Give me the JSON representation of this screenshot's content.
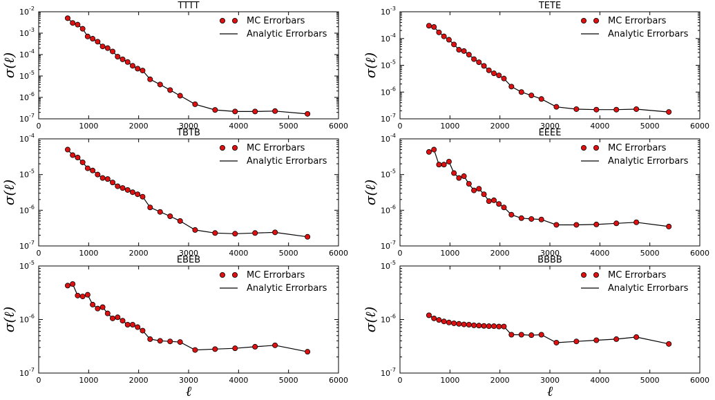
{
  "figure": {
    "legend": {
      "mc_label": "MC Errorbars",
      "analytic_label": "Analytic Errorbars",
      "placement": "top-right"
    },
    "x_axis_label": "ℓ",
    "y_axis_label": "σ(ℓ)",
    "colors": {
      "marker": "#dd1111",
      "line": "#000000"
    }
  },
  "chart_data": [
    {
      "type": "line",
      "title": "TTTT",
      "xlabel": "",
      "ylabel": "σ(ℓ)",
      "xlim": [
        0,
        6000
      ],
      "ylim_exp": [
        -7,
        -2
      ],
      "xticks": [
        0,
        1000,
        2000,
        3000,
        4000,
        5000,
        6000
      ],
      "x": [
        580,
        680,
        780,
        880,
        980,
        1080,
        1180,
        1280,
        1380,
        1480,
        1580,
        1680,
        1780,
        1880,
        1980,
        2080,
        2230,
        2430,
        2630,
        2830,
        3130,
        3530,
        3930,
        4330,
        4730,
        5380
      ],
      "y": [
        0.005,
        0.003,
        0.0025,
        0.0016,
        0.0007,
        0.00055,
        0.0004,
        0.00024,
        0.0002,
        0.00014,
        8e-05,
        6e-05,
        4.5e-05,
        3e-05,
        2.2e-05,
        1.8e-05,
        7e-06,
        4e-06,
        2.2e-06,
        1.2e-06,
        4.8e-07,
        2.6e-07,
        2.2e-07,
        2.2e-07,
        2.3e-07,
        1.7e-07
      ]
    },
    {
      "type": "line",
      "title": "TETE",
      "xlabel": "",
      "ylabel": "σ(ℓ)",
      "xlim": [
        0,
        6000
      ],
      "ylim_exp": [
        -7,
        -3
      ],
      "xticks": [
        0,
        1000,
        2000,
        3000,
        4000,
        5000,
        6000
      ],
      "x": [
        580,
        680,
        780,
        880,
        980,
        1080,
        1180,
        1280,
        1380,
        1480,
        1580,
        1680,
        1780,
        1880,
        1980,
        2080,
        2230,
        2430,
        2630,
        2830,
        3130,
        3530,
        3930,
        4330,
        4730,
        5380
      ],
      "y": [
        0.0003,
        0.00027,
        0.00017,
        0.00012,
        9e-05,
        6e-05,
        3.8e-05,
        3.4e-05,
        2.5e-05,
        1.7e-05,
        1.3e-05,
        9.5e-06,
        6.5e-06,
        5e-06,
        4.2e-06,
        3.2e-06,
        1.6e-06,
        1e-06,
        7.5e-07,
        5.5e-07,
        2.8e-07,
        2.3e-07,
        2.2e-07,
        2.2e-07,
        2.3e-07,
        1.8e-07
      ]
    },
    {
      "type": "line",
      "title": "TBTB",
      "xlabel": "",
      "ylabel": "σ(ℓ)",
      "xlim": [
        0,
        6000
      ],
      "ylim_exp": [
        -7,
        -4
      ],
      "xticks": [
        0,
        1000,
        2000,
        3000,
        4000,
        5000,
        6000
      ],
      "x": [
        580,
        680,
        780,
        880,
        980,
        1080,
        1180,
        1280,
        1380,
        1480,
        1580,
        1680,
        1780,
        1880,
        1980,
        2080,
        2230,
        2430,
        2630,
        2830,
        3130,
        3530,
        3930,
        4330,
        4730,
        5380
      ],
      "y": [
        5e-05,
        3.5e-05,
        3e-05,
        2.2e-05,
        1.5e-05,
        1.3e-05,
        1e-05,
        8e-06,
        7.5e-06,
        6e-06,
        4.7e-06,
        4.2e-06,
        3.7e-06,
        3.2e-06,
        2.8e-06,
        2.4e-06,
        1.2e-06,
        9e-07,
        6.8e-07,
        5e-07,
        2.8e-07,
        2.3e-07,
        2.2e-07,
        2.3e-07,
        2.4e-07,
        1.8e-07
      ]
    },
    {
      "type": "line",
      "title": "EEEE",
      "xlabel": "",
      "ylabel": "σ(ℓ)",
      "xlim": [
        0,
        6000
      ],
      "ylim_exp": [
        -7,
        -4
      ],
      "xticks": [
        0,
        1000,
        2000,
        3000,
        4000,
        5000,
        6000
      ],
      "x": [
        580,
        680,
        780,
        880,
        980,
        1080,
        1180,
        1280,
        1380,
        1480,
        1580,
        1680,
        1780,
        1880,
        1980,
        2080,
        2230,
        2430,
        2630,
        2830,
        3130,
        3530,
        3930,
        4330,
        4730,
        5380
      ],
      "y": [
        4.3e-05,
        5e-05,
        1.9e-05,
        1.9e-05,
        2.3e-05,
        1.1e-05,
        8e-06,
        9e-06,
        5.5e-06,
        3.6e-06,
        4e-06,
        2.8e-06,
        1.8e-06,
        1.9e-06,
        1.5e-06,
        1.2e-06,
        7.5e-07,
        6e-07,
        5.7e-07,
        5.5e-07,
        3.9e-07,
        3.9e-07,
        4e-07,
        4.3e-07,
        4.6e-07,
        3.5e-07
      ]
    },
    {
      "type": "line",
      "title": "EBEB",
      "xlabel": "ℓ",
      "ylabel": "σ(ℓ)",
      "xlim": [
        0,
        6000
      ],
      "ylim_exp": [
        -7,
        -5
      ],
      "xticks": [
        0,
        1000,
        2000,
        3000,
        4000,
        5000,
        6000
      ],
      "x": [
        580,
        680,
        780,
        880,
        980,
        1080,
        1180,
        1280,
        1380,
        1480,
        1580,
        1680,
        1780,
        1880,
        1980,
        2080,
        2230,
        2430,
        2630,
        2830,
        3130,
        3530,
        3930,
        4330,
        4730,
        5380
      ],
      "y": [
        4.3e-06,
        4.6e-06,
        2.8e-06,
        2.7e-06,
        2.9e-06,
        1.9e-06,
        1.6e-06,
        1.7e-06,
        1.3e-06,
        1.05e-06,
        1.1e-06,
        9.5e-07,
        8e-07,
        8e-07,
        7.2e-07,
        6.2e-07,
        4.3e-07,
        4e-07,
        3.9e-07,
        3.8e-07,
        2.7e-07,
        2.8e-07,
        2.9e-07,
        3.1e-07,
        3.3e-07,
        2.5e-07
      ]
    },
    {
      "type": "line",
      "title": "BBBB",
      "xlabel": "ℓ",
      "ylabel": "σ(ℓ)",
      "xlim": [
        0,
        6000
      ],
      "ylim_exp": [
        -7,
        -5
      ],
      "xticks": [
        0,
        1000,
        2000,
        3000,
        4000,
        5000,
        6000
      ],
      "x": [
        580,
        680,
        780,
        880,
        980,
        1080,
        1180,
        1280,
        1380,
        1480,
        1580,
        1680,
        1780,
        1880,
        1980,
        2080,
        2230,
        2430,
        2630,
        2830,
        3130,
        3530,
        3930,
        4330,
        4730,
        5380
      ],
      "y": [
        1.2e-06,
        1.05e-06,
        9.8e-07,
        9.2e-07,
        8.8e-07,
        8.5e-07,
        8.3e-07,
        8.1e-07,
        8e-07,
        7.8e-07,
        7.7e-07,
        7.6e-07,
        7.5e-07,
        7.5e-07,
        7.4e-07,
        7.4e-07,
        5.2e-07,
        5.2e-07,
        5.1e-07,
        5.2e-07,
        3.7e-07,
        3.9e-07,
        4.1e-07,
        4.3e-07,
        4.7e-07,
        3.5e-07
      ]
    }
  ]
}
